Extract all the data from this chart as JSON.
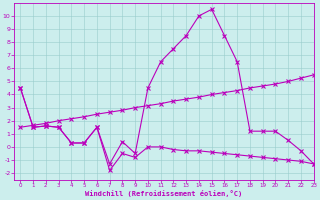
{
  "x": [
    0,
    1,
    2,
    3,
    4,
    5,
    6,
    7,
    8,
    9,
    10,
    11,
    12,
    13,
    14,
    15,
    16,
    17,
    18,
    19,
    20,
    21,
    22,
    23
  ],
  "temperature": [
    4.5,
    1.5,
    1.6,
    1.5,
    0.3,
    0.3,
    1.5,
    -1.3,
    0.4,
    -0.5,
    4.5,
    6.5,
    7.5,
    8.5,
    10.0,
    10.5,
    8.5,
    6.5,
    1.2,
    1.2,
    1.2,
    0.5,
    -0.3,
    -1.3
  ],
  "windchill": [
    4.5,
    1.5,
    1.6,
    1.5,
    0.3,
    0.3,
    1.5,
    -1.8,
    -0.5,
    -0.8,
    0.0,
    0.0,
    -0.2,
    -0.3,
    -0.3,
    -0.4,
    -0.5,
    -0.6,
    -0.7,
    -0.8,
    -0.9,
    -1.0,
    -1.1,
    -1.3
  ],
  "linear": [
    1.5,
    1.65,
    1.8,
    2.0,
    2.15,
    2.3,
    2.5,
    2.65,
    2.8,
    3.0,
    3.15,
    3.3,
    3.5,
    3.65,
    3.8,
    4.0,
    4.15,
    4.3,
    4.5,
    4.65,
    4.8,
    5.0,
    5.25,
    5.5
  ],
  "color": "#bb00bb",
  "bg_color": "#cceeed",
  "grid_color": "#99cccc",
  "xlabel": "Windchill (Refroidissement éolien,°C)",
  "ylim": [
    -2.5,
    11
  ],
  "xlim": [
    -0.5,
    23
  ],
  "yticks": [
    -2,
    -1,
    0,
    1,
    2,
    3,
    4,
    5,
    6,
    7,
    8,
    9,
    10
  ],
  "xticks": [
    0,
    1,
    2,
    3,
    4,
    5,
    6,
    7,
    8,
    9,
    10,
    11,
    12,
    13,
    14,
    15,
    16,
    17,
    18,
    19,
    20,
    21,
    22,
    23
  ]
}
